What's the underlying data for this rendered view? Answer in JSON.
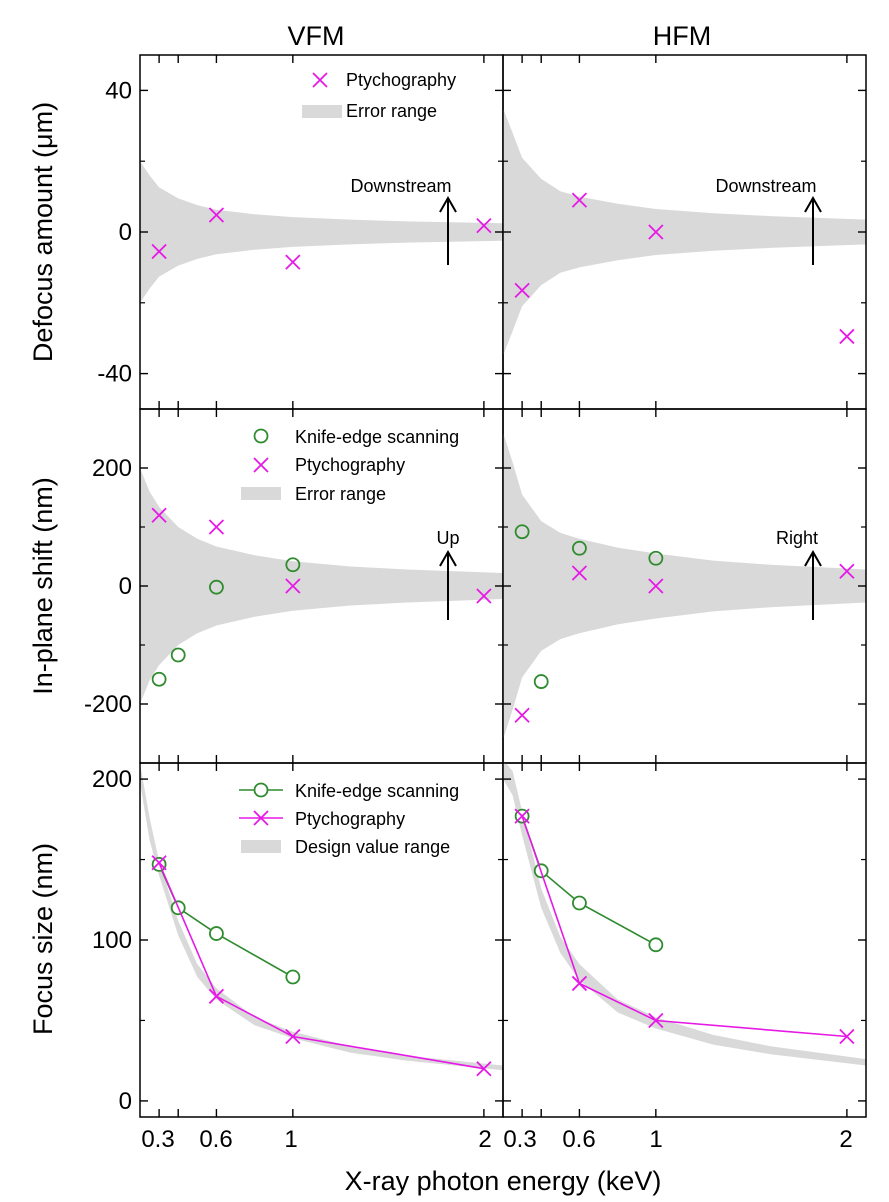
{
  "figure": {
    "column_titles": [
      "VFM",
      "HFM"
    ],
    "row_ylabels": [
      "Defocus amount (μm)",
      "In-plane shift (nm)",
      "Focus size (nm)"
    ],
    "xlabel": "X-ray photon energy (keV)",
    "x_tick_labels": [
      "0.3",
      "0.6",
      "1",
      "2"
    ]
  },
  "colors": {
    "knife_edge": "#2e8b2e",
    "ptychography": "#e619e6",
    "band": "#d9d9d9"
  },
  "legends": {
    "defocus": {
      "ptychography": "Ptychography",
      "error": "Error range"
    },
    "shift": {
      "knife_edge": "Knife-edge scanning",
      "ptychography": "Ptychography",
      "error": "Error range"
    },
    "focus": {
      "knife_edge": "Knife-edge scanning",
      "ptychography": "Ptychography",
      "design": "Design value range"
    }
  },
  "annotations": {
    "vfm_defocus": "Downstream",
    "hfm_defocus": "Downstream",
    "vfm_shift": "Up",
    "hfm_shift": "Right"
  },
  "chart_data": [
    {
      "id": "vfm_defocus",
      "type": "scatter",
      "title": "VFM",
      "xlabel": "",
      "ylabel": "Defocus amount (μm)",
      "xlim": [
        0.2,
        2.1
      ],
      "ylim": [
        -50,
        50
      ],
      "yticks": [
        -40,
        0,
        40
      ],
      "ytick_labels": [
        "-40",
        "0",
        "40"
      ],
      "minor_yticks": [
        -20,
        20
      ],
      "xticks": [
        0.3,
        0.4,
        0.6,
        1,
        2
      ],
      "band": {
        "name": "Error range",
        "symmetric": true,
        "x": [
          0.2,
          0.25,
          0.3,
          0.4,
          0.5,
          0.6,
          0.8,
          1.0,
          1.3,
          1.6,
          2.1
        ],
        "upper": [
          20,
          16,
          12.6,
          9.5,
          7.6,
          6.3,
          5.0,
          4.2,
          3.5,
          3.0,
          2.5
        ]
      },
      "series": [
        {
          "name": "Ptychography",
          "marker": "x",
          "line": false,
          "x": [
            0.3,
            0.6,
            1,
            2
          ],
          "y": [
            -5.5,
            4.8,
            -8.5,
            1.8
          ]
        }
      ]
    },
    {
      "id": "hfm_defocus",
      "type": "scatter",
      "title": "HFM",
      "xlabel": "",
      "ylabel": "",
      "xlim": [
        0.2,
        2.1
      ],
      "ylim": [
        -50,
        50
      ],
      "yticks": [
        -40,
        0,
        40
      ],
      "ytick_labels": [],
      "minor_yticks": [
        -20,
        20
      ],
      "xticks": [
        0.3,
        0.4,
        0.6,
        1,
        2
      ],
      "band": {
        "name": "Error range",
        "symmetric": true,
        "x": [
          0.2,
          0.25,
          0.3,
          0.4,
          0.5,
          0.6,
          0.8,
          1.0,
          1.3,
          1.6,
          2.1
        ],
        "upper": [
          35,
          28,
          21,
          15,
          11.5,
          10,
          8,
          6.5,
          5.3,
          4.5,
          3.5
        ]
      },
      "series": [
        {
          "name": "Ptychography",
          "marker": "x",
          "line": false,
          "x": [
            0.3,
            0.6,
            1,
            2
          ],
          "y": [
            -16.5,
            9,
            0,
            -29.5
          ]
        }
      ]
    },
    {
      "id": "vfm_shift",
      "type": "scatter",
      "title": "",
      "xlabel": "",
      "ylabel": "In-plane shift (nm)",
      "xlim": [
        0.2,
        2.1
      ],
      "ylim": [
        -300,
        300
      ],
      "yticks": [
        -200,
        0,
        200
      ],
      "ytick_labels": [
        "-200",
        "0",
        "200"
      ],
      "minor_yticks": [
        -100,
        100
      ],
      "xticks": [
        0.3,
        0.4,
        0.6,
        1,
        2
      ],
      "band": {
        "name": "Error range",
        "symmetric": true,
        "x": [
          0.2,
          0.25,
          0.3,
          0.4,
          0.5,
          0.6,
          0.8,
          1.0,
          1.3,
          1.6,
          2.1
        ],
        "upper": [
          200,
          160,
          134,
          100,
          80,
          67,
          52,
          42,
          33,
          28,
          22
        ]
      },
      "series": [
        {
          "name": "Knife-edge scanning",
          "marker": "o",
          "line": false,
          "x": [
            0.3,
            0.4,
            0.6,
            1
          ],
          "y": [
            -158,
            -117,
            -2,
            36
          ]
        },
        {
          "name": "Ptychography",
          "marker": "x",
          "line": false,
          "x": [
            0.3,
            0.6,
            1,
            2
          ],
          "y": [
            120,
            100,
            0,
            -17
          ]
        }
      ]
    },
    {
      "id": "hfm_shift",
      "type": "scatter",
      "title": "",
      "xlabel": "",
      "ylabel": "",
      "xlim": [
        0.2,
        2.1
      ],
      "ylim": [
        -300,
        300
      ],
      "yticks": [
        -200,
        0,
        200
      ],
      "ytick_labels": [],
      "minor_yticks": [
        -100,
        100
      ],
      "xticks": [
        0.3,
        0.4,
        0.6,
        1,
        2
      ],
      "band": {
        "name": "Error range",
        "symmetric": true,
        "x": [
          0.2,
          0.25,
          0.3,
          0.4,
          0.5,
          0.6,
          0.8,
          1.0,
          1.3,
          1.6,
          2.1
        ],
        "upper": [
          260,
          210,
          155,
          110,
          90,
          80,
          65,
          55,
          43,
          36,
          28
        ]
      },
      "series": [
        {
          "name": "Knife-edge scanning",
          "marker": "o",
          "line": false,
          "x": [
            0.3,
            0.4,
            0.6,
            1
          ],
          "y": [
            92,
            -162,
            64,
            47
          ]
        },
        {
          "name": "Ptychography",
          "marker": "x",
          "line": false,
          "x": [
            0.3,
            0.6,
            1,
            2
          ],
          "y": [
            -219,
            22,
            0,
            25
          ]
        }
      ]
    },
    {
      "id": "vfm_focus",
      "type": "line",
      "title": "",
      "xlabel": "",
      "ylabel": "Focus size (nm)",
      "xlim": [
        0.2,
        2.1
      ],
      "ylim": [
        -10,
        210
      ],
      "yticks": [
        0,
        100,
        200
      ],
      "ytick_labels": [
        "0",
        "100",
        "200"
      ],
      "minor_yticks": [
        50,
        150
      ],
      "xticks": [
        0.3,
        0.4,
        0.6,
        1,
        2
      ],
      "band": {
        "name": "Design value range",
        "symmetric": false,
        "x": [
          0.2,
          0.25,
          0.3,
          0.4,
          0.5,
          0.6,
          0.8,
          1.0,
          1.3,
          1.6,
          2.1
        ],
        "upper": [
          210,
          176,
          149,
          112,
          85,
          70,
          52,
          43,
          34,
          28,
          22
        ],
        "lower": [
          198,
          162,
          140,
          103,
          77,
          63,
          47,
          39,
          30,
          25,
          19
        ]
      },
      "series": [
        {
          "name": "Knife-edge scanning",
          "marker": "o",
          "line": true,
          "x": [
            0.3,
            0.4,
            0.6,
            1
          ],
          "y": [
            147,
            120,
            104,
            77
          ]
        },
        {
          "name": "Ptychography",
          "marker": "x",
          "line": true,
          "x": [
            0.3,
            0.6,
            1,
            2
          ],
          "y": [
            148,
            65,
            40,
            20
          ]
        }
      ]
    },
    {
      "id": "hfm_focus",
      "type": "line",
      "title": "",
      "xlabel": "",
      "ylabel": "",
      "xlim": [
        0.2,
        2.1
      ],
      "ylim": [
        -10,
        210
      ],
      "yticks": [
        0,
        100,
        200
      ],
      "ytick_labels": [],
      "minor_yticks": [
        50,
        150
      ],
      "xticks": [
        0.3,
        0.4,
        0.6,
        1,
        2
      ],
      "band": {
        "name": "Design value range",
        "symmetric": false,
        "x": [
          0.2,
          0.25,
          0.3,
          0.4,
          0.5,
          0.6,
          0.8,
          1.0,
          1.3,
          1.6,
          2.1
        ],
        "upper": [
          212,
          205,
          180,
          132,
          102,
          85,
          63,
          52,
          41,
          34,
          26
        ],
        "lower": [
          200,
          190,
          165,
          120,
          92,
          75,
          55,
          45,
          35,
          29,
          22
        ]
      },
      "series": [
        {
          "name": "Knife-edge scanning",
          "marker": "o",
          "line": true,
          "x": [
            0.3,
            0.4,
            0.6,
            1
          ],
          "y": [
            177,
            143,
            123,
            97
          ]
        },
        {
          "name": "Ptychography",
          "marker": "x",
          "line": true,
          "x": [
            0.3,
            0.6,
            1,
            2
          ],
          "y": [
            177,
            73,
            50,
            40
          ]
        }
      ]
    }
  ]
}
